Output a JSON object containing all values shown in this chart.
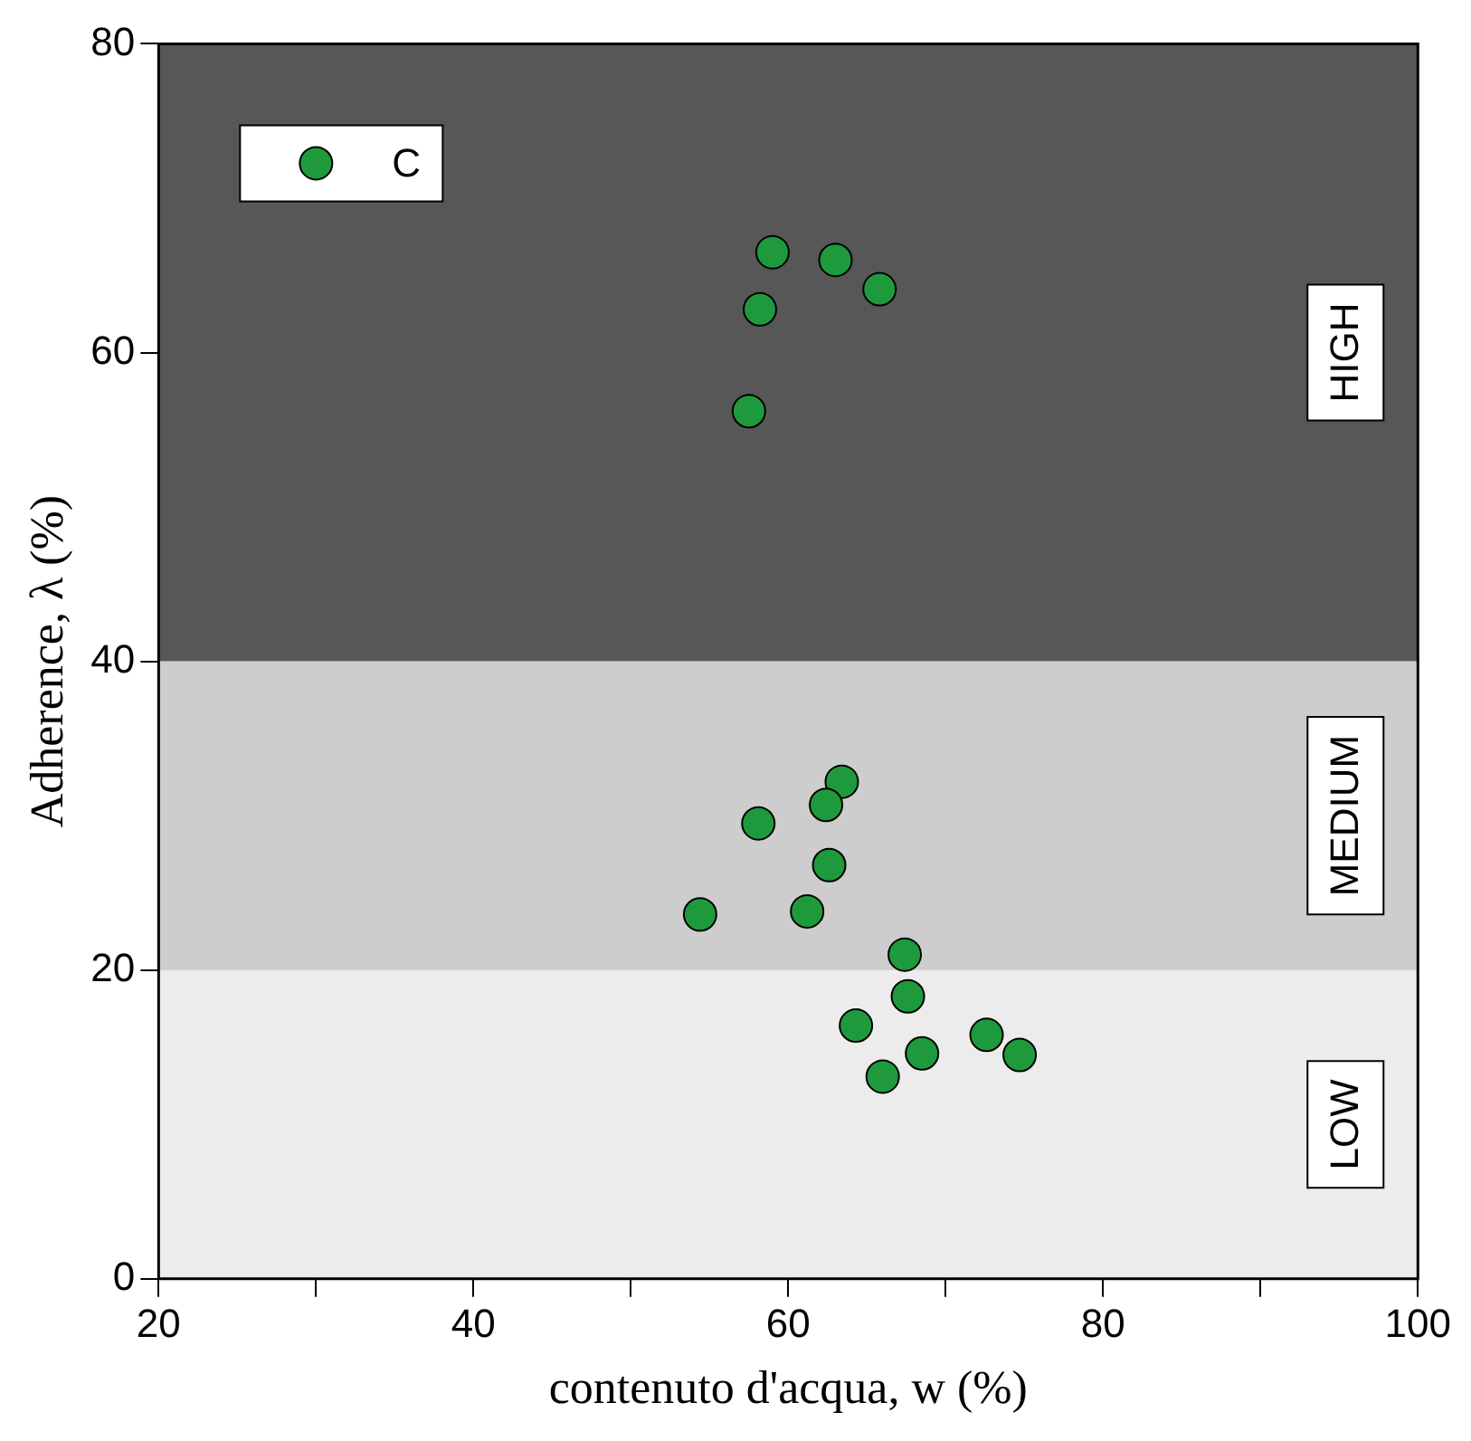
{
  "chart_data": {
    "type": "scatter",
    "xlabel": "contenuto d'acqua, w (%)",
    "ylabel": "Adherence, λ (%)",
    "xlim": [
      20,
      100
    ],
    "xticks": [
      20,
      {
        "value": 30,
        "label": null
      },
      40,
      {
        "value": 50,
        "label": null
      },
      60,
      {
        "value": 70,
        "label": null
      },
      80,
      {
        "value": 90,
        "label": null
      },
      100
    ],
    "ylim": [
      0,
      80
    ],
    "yticks": [
      0,
      20,
      40,
      60,
      80
    ],
    "grid": false,
    "legend": "top left",
    "marker": "circle",
    "bands": [
      {
        "axis": "y",
        "from": 0,
        "to": 20,
        "label": "LOW",
        "color": "#ececec"
      },
      {
        "axis": "y",
        "from": 20,
        "to": 40,
        "label": "MEDIUM",
        "color": "#cdcdcd"
      },
      {
        "axis": "y",
        "from": 40,
        "to": 80,
        "label": "HIGH",
        "color": "#575757"
      }
    ],
    "series": [
      {
        "name": "C",
        "color": "#1e9a3c",
        "x": [
          57.5,
          58.2,
          59.0,
          63.0,
          65.8,
          63.4,
          62.4,
          58.1,
          62.6,
          54.4,
          61.2,
          67.4,
          67.6,
          64.3,
          72.6,
          74.7,
          68.5,
          66.0
        ],
        "values": [
          56.2,
          62.8,
          66.5,
          66.0,
          64.1,
          32.2,
          30.7,
          29.5,
          26.8,
          23.6,
          23.8,
          21.0,
          18.3,
          16.4,
          15.8,
          14.5,
          14.6,
          13.1
        ]
      }
    ]
  }
}
